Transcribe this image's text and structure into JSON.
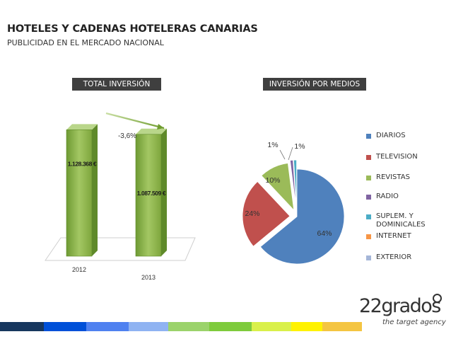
{
  "header": {
    "title": "HOTELES Y CADENAS HOTELERAS CANARIAS",
    "subtitle": "PUBLICIDAD EN EL MERCADO NACIONAL"
  },
  "panels": {
    "total_label": "TOTAL INVERSIÓN",
    "media_label": "INVERSIÓN POR MEDIOS"
  },
  "chart_data": [
    {
      "type": "bar",
      "title": "TOTAL INVERSIÓN",
      "categories": [
        "2012",
        "2013"
      ],
      "values": [
        1128368,
        1087509
      ],
      "value_labels": [
        "1.128.368 €",
        "1.087.509 €"
      ],
      "annotation": "-3,6%",
      "color": "#8db04a"
    },
    {
      "type": "pie",
      "title": "INVERSIÓN POR MEDIOS",
      "categories": [
        "DIARIOS",
        "TELEVISION",
        "REVISTAS",
        "RADIO",
        "SUPLEM. Y DOMINICALES",
        "INTERNET",
        "EXTERIOR"
      ],
      "values": [
        64,
        24,
        10,
        1,
        1,
        0,
        0
      ],
      "value_labels": [
        "64%",
        "24%",
        "10%",
        "1%",
        "1%",
        "",
        ""
      ],
      "colors": [
        "#4f81bd",
        "#c0504d",
        "#9bbb59",
        "#8064a2",
        "#4bacc6",
        "#f79646",
        "#a5b6d8"
      ],
      "legend_position": "right"
    }
  ],
  "brand": {
    "logo_text": "22grados",
    "tagline": "the target agency"
  },
  "bottom_bar_colors": [
    "#17375e",
    "#0050d8",
    "#4f81f0",
    "#8fb3f2",
    "#9bd36b",
    "#7ecb3c",
    "#d9f04a",
    "#fff200",
    "#f4c542",
    "#ffffff"
  ]
}
